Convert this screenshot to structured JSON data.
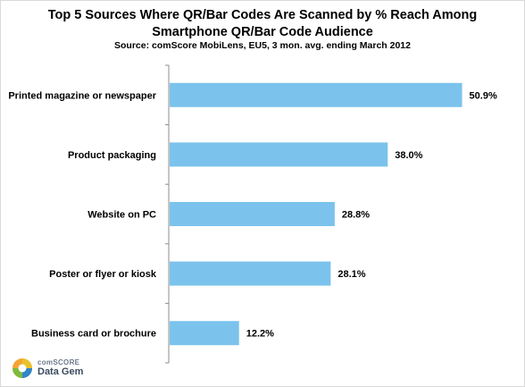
{
  "title_line1": "Top 5 Sources Where QR/Bar Codes Are Scanned by % Reach Among",
  "title_line2": "Smartphone QR/Bar Code Audience",
  "source": "Source: comScore MobiLens, EU5, 3 mon. avg. ending March 2012",
  "logo": {
    "brand": "comSCORE",
    "product": "Data Gem",
    "icon": "comscore-droplet-logo"
  },
  "colors": {
    "bar": "#7bc3ec",
    "axis": "#8c8c8c"
  },
  "chart_data": {
    "type": "bar",
    "orientation": "horizontal",
    "categories": [
      "Printed magazine  or newspaper",
      "Product  packaging",
      "Website on PC",
      "Poster or flyer or kiosk",
      "Business card or brochure"
    ],
    "values": [
      50.9,
      38.0,
      28.8,
      28.1,
      12.2
    ],
    "data_labels": [
      "50.9%",
      "38.0%",
      "28.8%",
      "28.1%",
      "12.2%"
    ],
    "value_unit": "%",
    "xlim": [
      0,
      55
    ],
    "grid": false,
    "legend": "none"
  }
}
